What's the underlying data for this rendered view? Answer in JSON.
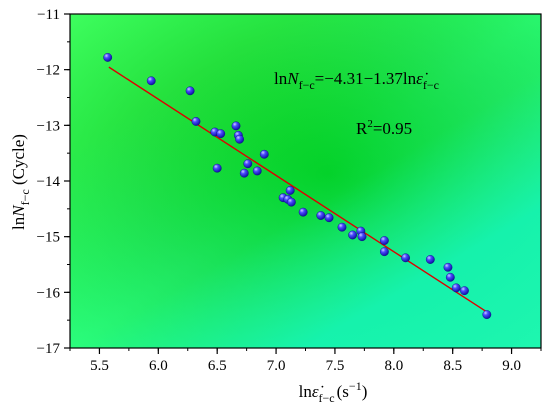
{
  "chart_data": {
    "type": "scatter",
    "title": "",
    "xlabel": {
      "prefix": "ln",
      "symbol": "ε̇",
      "sub": "f−c",
      "unit": "(s",
      "unit_sup": "−1",
      "unit_close": ")"
    },
    "ylabel": {
      "prefix": "ln",
      "symbol": "N",
      "sub": "f−c",
      "unit": " (Cycle)"
    },
    "xlim": [
      5.25,
      9.25
    ],
    "ylim": [
      -17,
      -11
    ],
    "xticks": [
      "5.5",
      "6.0",
      "6.5",
      "7.0",
      "7.5",
      "8.0",
      "8.5",
      "9.0"
    ],
    "yticks": [
      "−11",
      "−12",
      "−13",
      "−14",
      "−15",
      "−16",
      "−17"
    ],
    "grid": false,
    "background": {
      "center": "#00c800",
      "edge_top_left": "#33ff55",
      "edge_bottom_left": "#11f5c0",
      "edge_right": "#aaff44"
    },
    "marker_color": "#2222dd",
    "fit_line_color": "#dd0000",
    "fit": {
      "intercept": -4.31,
      "slope": -1.37,
      "x_range": [
        5.58,
        8.8
      ]
    },
    "equation": {
      "lhs_prefix": "ln",
      "lhs_symbol": "N",
      "lhs_sub": "f−c",
      "rhs": "=−4.31−1.37ln",
      "rhs_symbol": "ε̇",
      "rhs_sub": "f−c"
    },
    "r2": {
      "label": "R",
      "sup": "2",
      "value": "=0.95"
    },
    "points": [
      [
        5.57,
        -11.78
      ],
      [
        5.94,
        -12.2
      ],
      [
        6.27,
        -12.38
      ],
      [
        6.32,
        -12.93
      ],
      [
        6.48,
        -13.12
      ],
      [
        6.53,
        -13.15
      ],
      [
        6.66,
        -13.01
      ],
      [
        6.68,
        -13.18
      ],
      [
        6.69,
        -13.25
      ],
      [
        6.5,
        -13.77
      ],
      [
        6.73,
        -13.86
      ],
      [
        6.76,
        -13.69
      ],
      [
        6.84,
        -13.82
      ],
      [
        6.9,
        -13.52
      ],
      [
        7.06,
        -14.3
      ],
      [
        7.1,
        -14.33
      ],
      [
        7.12,
        -14.17
      ],
      [
        7.13,
        -14.38
      ],
      [
        7.23,
        -14.56
      ],
      [
        7.38,
        -14.62
      ],
      [
        7.45,
        -14.66
      ],
      [
        7.56,
        -14.83
      ],
      [
        7.65,
        -14.97
      ],
      [
        7.72,
        -14.9
      ],
      [
        7.73,
        -15.0
      ],
      [
        7.92,
        -15.07
      ],
      [
        7.92,
        -15.27
      ],
      [
        8.1,
        -15.38
      ],
      [
        8.31,
        -15.41
      ],
      [
        8.46,
        -15.55
      ],
      [
        8.48,
        -15.73
      ],
      [
        8.53,
        -15.92
      ],
      [
        8.6,
        -15.97
      ],
      [
        8.79,
        -16.4
      ]
    ]
  }
}
